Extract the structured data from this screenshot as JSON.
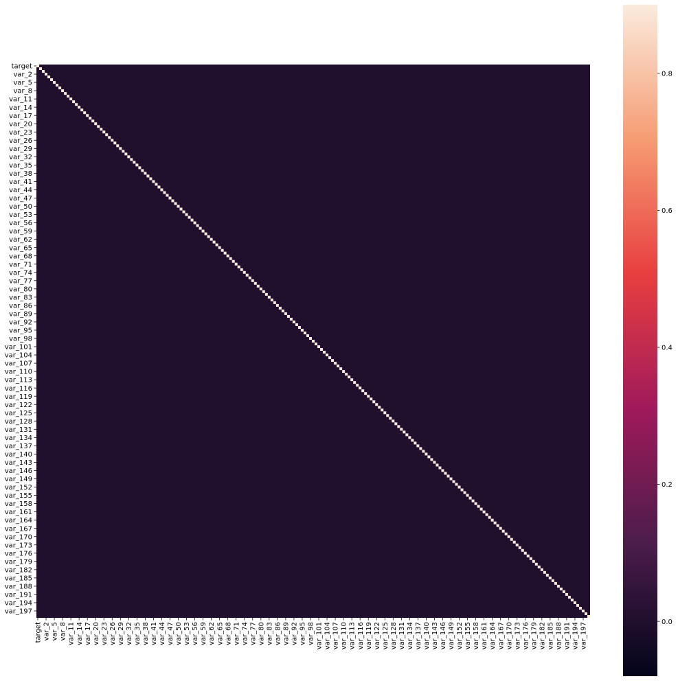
{
  "chart_data": {
    "type": "heatmap",
    "title": "",
    "xlabel": "",
    "ylabel": "",
    "row_labels": [
      "target",
      "var_2",
      "var_5",
      "var_8",
      "var_11",
      "var_14",
      "var_17",
      "var_20",
      "var_23",
      "var_26",
      "var_29",
      "var_32",
      "var_35",
      "var_38",
      "var_41",
      "var_44",
      "var_47",
      "var_50",
      "var_53",
      "var_56",
      "var_59",
      "var_62",
      "var_65",
      "var_68",
      "var_71",
      "var_74",
      "var_77",
      "var_80",
      "var_83",
      "var_86",
      "var_89",
      "var_92",
      "var_95",
      "var_98",
      "var_101",
      "var_104",
      "var_107",
      "var_110",
      "var_113",
      "var_116",
      "var_119",
      "var_122",
      "var_125",
      "var_128",
      "var_131",
      "var_134",
      "var_137",
      "var_140",
      "var_143",
      "var_146",
      "var_149",
      "var_152",
      "var_155",
      "var_158",
      "var_161",
      "var_164",
      "var_167",
      "var_170",
      "var_173",
      "var_176",
      "var_179",
      "var_182",
      "var_185",
      "var_188",
      "var_191",
      "var_194",
      "var_197"
    ],
    "col_labels": [
      "target",
      "var_2",
      "var_5",
      "var_8",
      "var_11",
      "var_14",
      "var_17",
      "var_20",
      "var_23",
      "var_26",
      "var_29",
      "var_32",
      "var_35",
      "var_38",
      "var_41",
      "var_44",
      "var_47",
      "var_50",
      "var_53",
      "var_56",
      "var_59",
      "var_62",
      "var_65",
      "var_68",
      "var_71",
      "var_74",
      "var_77",
      "var_80",
      "var_83",
      "var_86",
      "var_89",
      "var_92",
      "var_95",
      "var_98",
      "var_101",
      "var_104",
      "var_107",
      "var_110",
      "var_113",
      "var_116",
      "var_119",
      "var_122",
      "var_125",
      "var_128",
      "var_131",
      "var_134",
      "var_137",
      "var_140",
      "var_143",
      "var_146",
      "var_149",
      "var_152",
      "var_155",
      "var_158",
      "var_161",
      "var_164",
      "var_167",
      "var_170",
      "var_173",
      "var_176",
      "var_179",
      "var_182",
      "var_185",
      "var_188",
      "var_191",
      "var_194",
      "var_197"
    ],
    "label_step": 3,
    "matrix_size": 201,
    "diagonal_value": 1.0,
    "off_diagonal_value": 0.0,
    "color_range": [
      -0.08,
      0.9
    ],
    "colorbar_ticks": [
      "0.0",
      "0.2",
      "0.4",
      "0.6",
      "0.8"
    ],
    "colorbar_tick_values": [
      0.0,
      0.2,
      0.4,
      0.6,
      0.8
    ],
    "colormap": "rocket",
    "colormap_stops": [
      "#03051a",
      "#4c1d4b",
      "#a11a5b",
      "#e83f3f",
      "#f69c73",
      "#faebdd"
    ]
  }
}
